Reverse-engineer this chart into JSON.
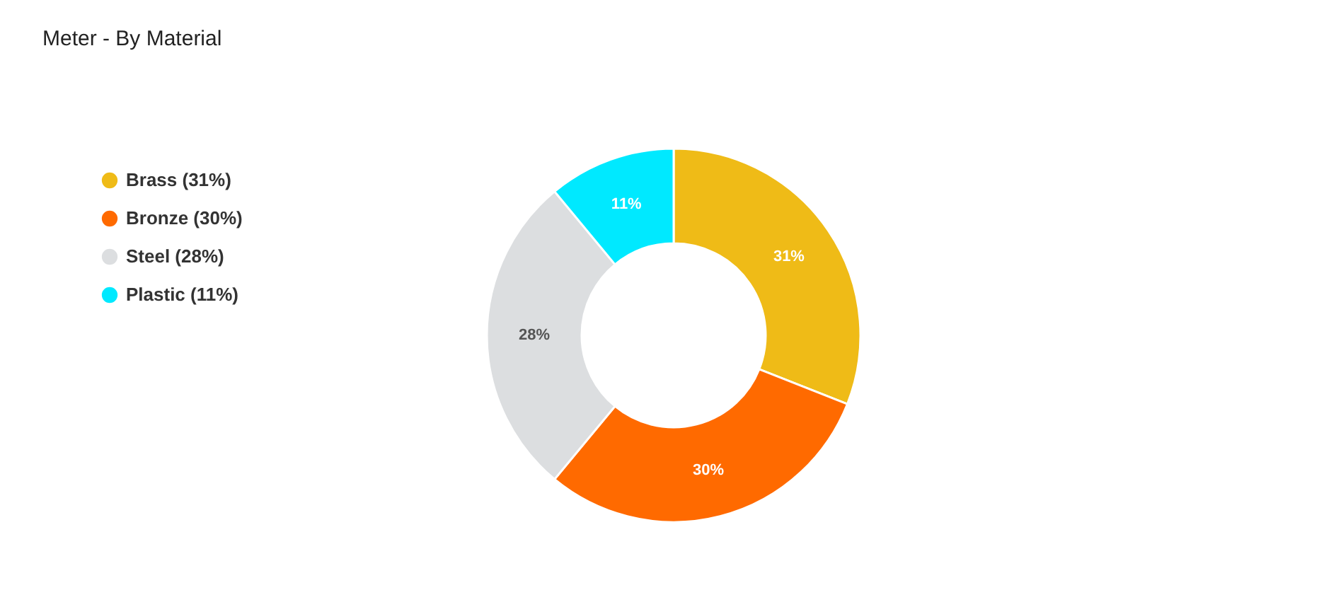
{
  "chart_data": {
    "type": "donut",
    "title": "Meter - By Material",
    "categories": [
      "Brass (31%)",
      "Bronze (30%)",
      "Steel (28%)",
      "Plastic (11%)"
    ],
    "values": [
      31,
      30,
      28,
      11
    ],
    "colors": [
      "#efbb17",
      "#ff6a00",
      "#dcdee0",
      "#00e9ff"
    ],
    "value_labels": [
      "31%",
      "30%",
      "28%",
      "11%"
    ],
    "legend": "top left"
  }
}
